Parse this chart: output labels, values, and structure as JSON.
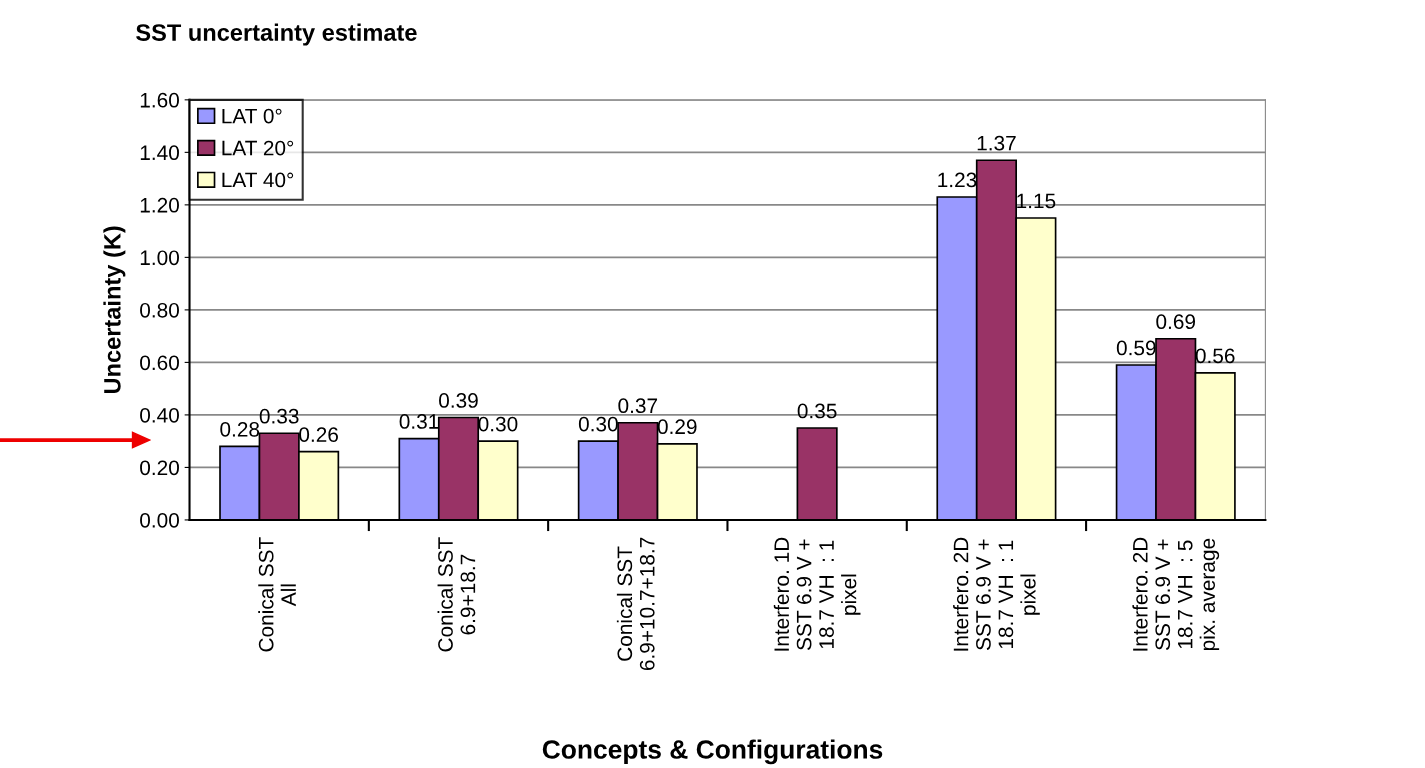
{
  "chart_data": {
    "type": "bar",
    "title": "SST uncertainty estimate",
    "xlabel": "Concepts & Configurations",
    "ylabel": "Uncertainty (K)",
    "categories": [
      "Conical SST\nAll",
      "Conical SST\n6.9+18.7",
      "Conical SST\n6.9+10.7+18.7",
      "Interfero. 1D\nSST 6.9 V +\n18.7 VH  : 1\npixel",
      "Interfero. 2D\nSST 6.9 V +\n18.7 VH  : 1\npixel",
      "Interfero. 2D\nSST 6.9 V +\n18.7 VH  : 5\npix. average"
    ],
    "series": [
      {
        "name": "LAT 0°",
        "color": "#9999ff",
        "values": [
          0.28,
          0.31,
          0.3,
          null,
          1.23,
          0.59
        ],
        "value_labels": [
          "0.28",
          "0.31",
          "0.30",
          null,
          "1.23",
          "0.59"
        ]
      },
      {
        "name": "LAT 20°",
        "color": "#993366",
        "values": [
          0.33,
          0.39,
          0.37,
          0.35,
          1.37,
          0.69
        ],
        "value_labels": [
          "0.33",
          "0.39",
          "0.37",
          "0.35",
          "1.37",
          "0.69"
        ]
      },
      {
        "name": "LAT 40°",
        "color": "#ffffcc",
        "values": [
          0.26,
          0.3,
          0.29,
          null,
          1.15,
          0.56
        ],
        "value_labels": [
          "0.26",
          "0.30",
          "0.29",
          null,
          "1.15",
          "0.56"
        ]
      }
    ],
    "ylim": [
      0,
      1.6
    ],
    "yticks": [
      {
        "value": 0,
        "label": "0.00"
      },
      {
        "value": 0.2,
        "label": "0.20"
      },
      {
        "value": 0.4,
        "label": "0.40"
      },
      {
        "value": 0.6,
        "label": "0.60"
      },
      {
        "value": 0.8,
        "label": "0.80"
      },
      {
        "value": 1.0,
        "label": "1.00"
      },
      {
        "value": 1.2,
        "label": "1.20"
      },
      {
        "value": 1.4,
        "label": "1.40"
      },
      {
        "value": 1.6,
        "label": "1.60"
      }
    ],
    "grid": "y",
    "legend": "top left"
  }
}
